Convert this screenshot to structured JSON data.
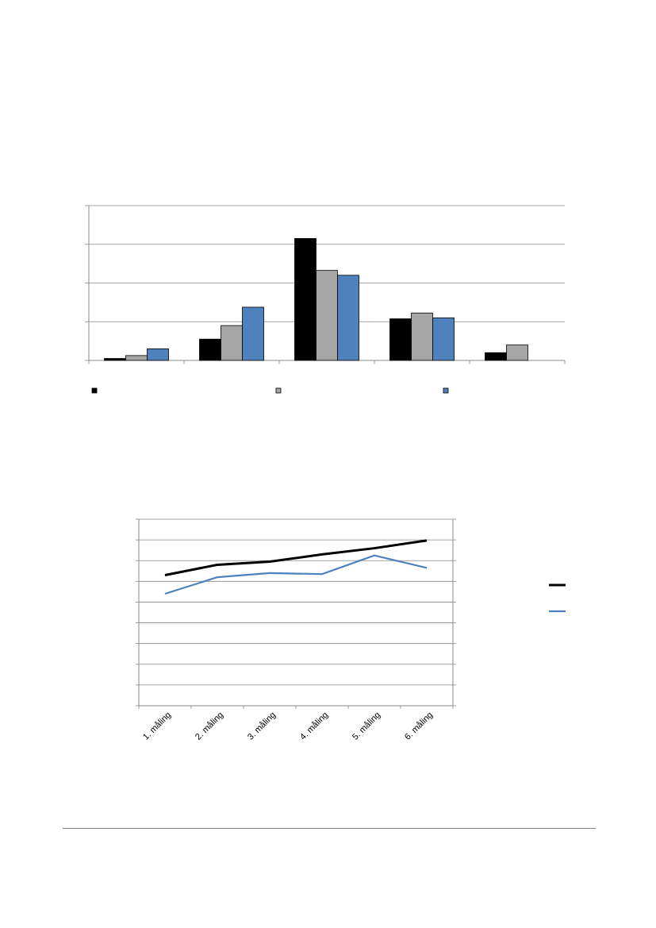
{
  "colors": {
    "series_black": "#000000",
    "series_gray": "#a6a6a6",
    "series_blue": "#4f81bd",
    "grid": "#888888"
  },
  "chart_data": [
    {
      "type": "bar",
      "categories": [
        "",
        "",
        "",
        "",
        ""
      ],
      "series": [
        {
          "values": [
            1,
            11,
            63,
            21.5,
            4
          ]
        },
        {
          "values": [
            2.5,
            18,
            46.5,
            24.5,
            8
          ]
        },
        {
          "values": [
            6,
            27.5,
            44,
            22,
            0
          ]
        }
      ],
      "ylim": [
        0,
        80
      ],
      "grid": true,
      "legend_position": "bottom"
    },
    {
      "type": "line",
      "categories": [
        "1. måling",
        "2. måling",
        "3. måling",
        "4. måling",
        "5. måling",
        "6. måling"
      ],
      "series": [
        {
          "values": [
            6.3,
            6.8,
            6.95,
            7.3,
            7.6,
            7.97
          ]
        },
        {
          "values": [
            5.4,
            6.2,
            6.4,
            6.35,
            7.25,
            6.65
          ]
        }
      ],
      "ylim": [
        0,
        9
      ],
      "grid": true,
      "legend_position": "right"
    }
  ]
}
